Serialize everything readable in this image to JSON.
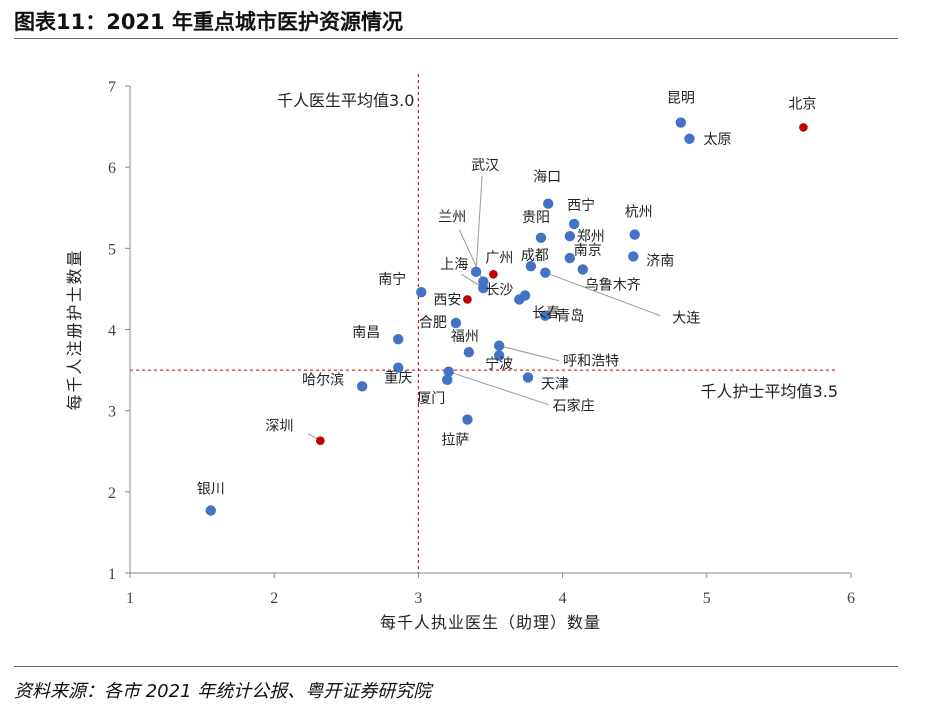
{
  "header": {
    "title": "图表11：2021 年重点城市医护资源情况"
  },
  "footer": {
    "source": "资料来源：各市 2021 年统计公报、粤开证券研究院"
  },
  "chart_data": {
    "type": "scatter",
    "title": "",
    "xlabel": "每千人执业医生（助理）数量",
    "ylabel": "每千人注册护士数量",
    "xlim": [
      1,
      6
    ],
    "ylim": [
      1,
      7
    ],
    "xticks": [
      "1",
      "2",
      "3",
      "4",
      "5",
      "6"
    ],
    "yticks": [
      "1",
      "2",
      "3",
      "4",
      "5",
      "6",
      "7"
    ],
    "grid": false,
    "colors": {
      "regular": "#4472c4",
      "highlight": "#c00000",
      "reference": "#c00000"
    },
    "reference_lines": [
      {
        "axis": "x",
        "value": 3.0,
        "label": "千人医生平均值3.0"
      },
      {
        "axis": "y",
        "value": 3.5,
        "label": "千人护士平均值3.5"
      }
    ],
    "points": [
      {
        "name": "北京",
        "x": 5.67,
        "y": 6.49,
        "highlight": true
      },
      {
        "name": "昆明",
        "x": 4.82,
        "y": 6.55,
        "highlight": false
      },
      {
        "name": "太原",
        "x": 4.88,
        "y": 6.35,
        "highlight": false
      },
      {
        "name": "海口",
        "x": 3.9,
        "y": 5.55,
        "highlight": false
      },
      {
        "name": "西宁",
        "x": 4.08,
        "y": 5.3,
        "highlight": false
      },
      {
        "name": "杭州",
        "x": 4.5,
        "y": 5.17,
        "highlight": false
      },
      {
        "name": "贵阳",
        "x": 3.85,
        "y": 5.13,
        "highlight": false
      },
      {
        "name": "郑州",
        "x": 4.05,
        "y": 5.15,
        "highlight": false
      },
      {
        "name": "济南",
        "x": 4.49,
        "y": 4.9,
        "highlight": false
      },
      {
        "name": "南京",
        "x": 4.05,
        "y": 4.88,
        "highlight": false
      },
      {
        "name": "成都",
        "x": 3.78,
        "y": 4.78,
        "highlight": false
      },
      {
        "name": "乌鲁木齐",
        "x": 4.14,
        "y": 4.74,
        "highlight": false
      },
      {
        "name": "武汉",
        "x": 3.4,
        "y": 4.71,
        "highlight": false
      },
      {
        "name": "广州",
        "x": 3.52,
        "y": 4.68,
        "highlight": true
      },
      {
        "name": "大连",
        "x": 3.88,
        "y": 4.7,
        "highlight": false
      },
      {
        "name": "兰州",
        "x": 3.45,
        "y": 4.59,
        "highlight": false
      },
      {
        "name": "上海",
        "x": 3.45,
        "y": 4.51,
        "highlight": false
      },
      {
        "name": "南宁",
        "x": 3.02,
        "y": 4.46,
        "highlight": false
      },
      {
        "name": "长春",
        "x": 3.74,
        "y": 4.42,
        "highlight": false
      },
      {
        "name": "西安",
        "x": 3.34,
        "y": 4.37,
        "highlight": true
      },
      {
        "name": "长沙",
        "x": 3.7,
        "y": 4.37,
        "highlight": false
      },
      {
        "name": "青岛",
        "x": 3.88,
        "y": 4.17,
        "highlight": false
      },
      {
        "name": "合肥",
        "x": 3.26,
        "y": 4.08,
        "highlight": false
      },
      {
        "name": "南昌",
        "x": 2.86,
        "y": 3.88,
        "highlight": false
      },
      {
        "name": "呼和浩特",
        "x": 3.56,
        "y": 3.8,
        "highlight": false
      },
      {
        "name": "福州",
        "x": 3.35,
        "y": 3.72,
        "highlight": false
      },
      {
        "name": "宁波",
        "x": 3.56,
        "y": 3.68,
        "highlight": false
      },
      {
        "name": "重庆",
        "x": 2.86,
        "y": 3.53,
        "highlight": false
      },
      {
        "name": "石家庄",
        "x": 3.21,
        "y": 3.48,
        "highlight": false
      },
      {
        "name": "天津",
        "x": 3.76,
        "y": 3.41,
        "highlight": false
      },
      {
        "name": "厦门",
        "x": 3.2,
        "y": 3.38,
        "highlight": false
      },
      {
        "name": "哈尔滨",
        "x": 2.61,
        "y": 3.3,
        "highlight": false
      },
      {
        "name": "拉萨",
        "x": 3.34,
        "y": 2.89,
        "highlight": false
      },
      {
        "name": "深圳",
        "x": 2.32,
        "y": 2.63,
        "highlight": true
      },
      {
        "name": "银川",
        "x": 1.56,
        "y": 1.77,
        "highlight": false
      }
    ]
  }
}
